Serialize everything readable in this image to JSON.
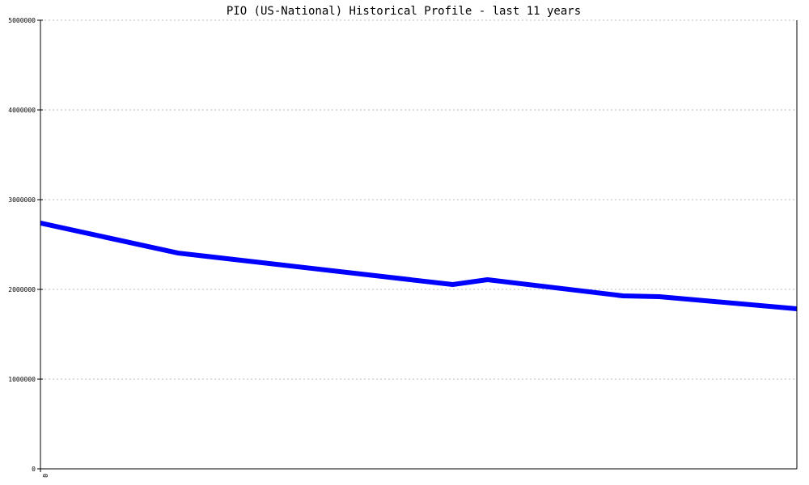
{
  "chart_data": {
    "type": "line",
    "title": "PIO (US-National) Historical Profile - last 11 years",
    "xlabel": "",
    "ylabel": "",
    "ylim": [
      0,
      5000000
    ],
    "xlim": [
      0,
      10
    ],
    "x_tick_labels": [
      "0"
    ],
    "y_ticks": [
      0,
      1000000,
      2000000,
      3000000,
      4000000,
      5000000
    ],
    "y_tick_labels": [
      "0",
      "1000000",
      "2000000",
      "3000000",
      "4000000",
      "5000000"
    ],
    "grid": true,
    "line_color": "#0000ff",
    "series": [
      {
        "x": [
          0,
          1.82,
          5.45,
          5.91,
          7.7,
          8.18,
          10
        ],
        "values": [
          2739000,
          2405000,
          2054000,
          2108000,
          1928000,
          1919000,
          1784000
        ]
      }
    ]
  }
}
